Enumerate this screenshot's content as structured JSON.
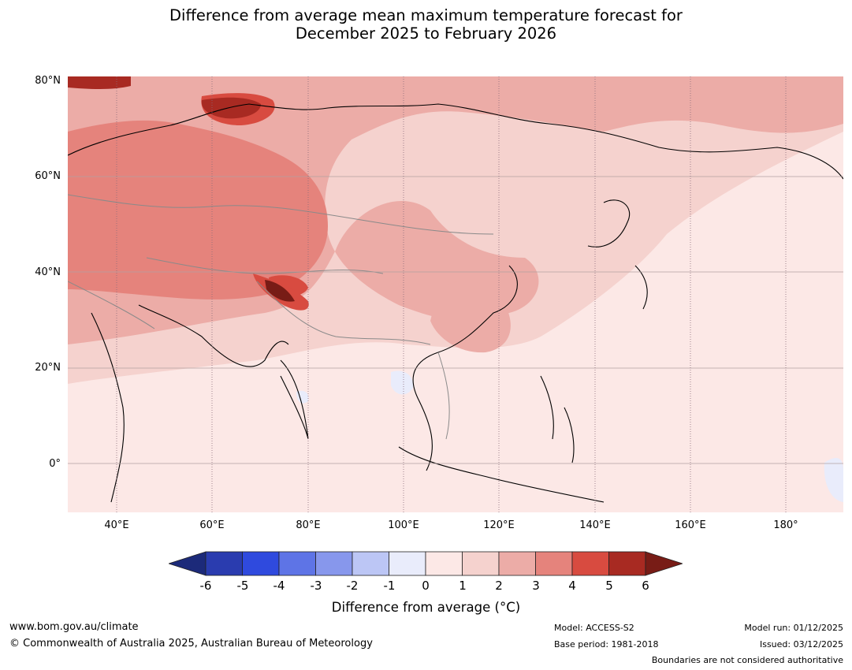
{
  "title": {
    "line1": "Difference from average mean maximum temperature forecast for",
    "line2": "December 2025 to February 2026"
  },
  "map": {
    "lat_labels": [
      "80°N",
      "60°N",
      "40°N",
      "20°N",
      "0°"
    ],
    "lon_labels": [
      "40°E",
      "60°E",
      "80°E",
      "100°E",
      "120°E",
      "140°E",
      "160°E",
      "180°"
    ]
  },
  "legend": {
    "title": "Difference from average (°C)",
    "ticks": [
      "-6",
      "-5",
      "-4",
      "-3",
      "-2",
      "-1",
      "0",
      "1",
      "2",
      "3",
      "4",
      "5",
      "6"
    ],
    "colors": [
      "#1c2a7a",
      "#2a3caf",
      "#2f4ade",
      "#5e74e6",
      "#8797ec",
      "#bcc6f5",
      "#e9ecfb",
      "#fce8e6",
      "#f5d2ce",
      "#ecaca7",
      "#e5837c",
      "#d84b40",
      "#a82a22",
      "#781c16"
    ]
  },
  "footer": {
    "url": "www.bom.gov.au/climate",
    "copyright": "© Commonwealth of Australia 2025, Australian Bureau of Meteorology",
    "model": "Model: ACCESS-S2",
    "base_period": "Base period: 1981-2018",
    "model_run": "Model run: 01/12/2025",
    "issued": "Issued: 03/12/2025",
    "disclaimer": "Boundaries are not considered authoritative"
  }
}
